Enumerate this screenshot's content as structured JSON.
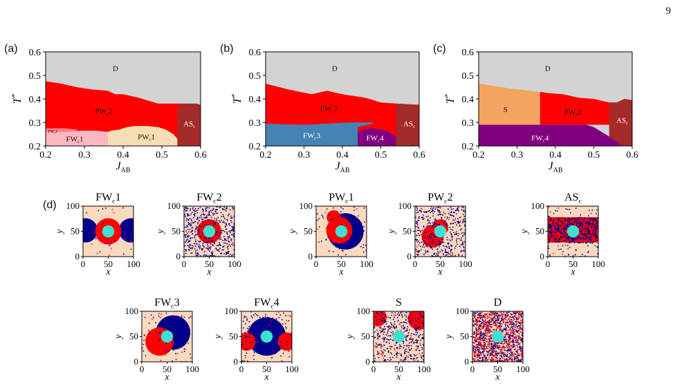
{
  "page_number": "9",
  "panel_labels": {
    "a": "(a)",
    "b": "(b)",
    "c": "(c)",
    "d": "(d)"
  },
  "colors": {
    "D": "#d3d3d3",
    "PWc2": "#ff0000",
    "FWc1": "#ffb6c1",
    "FWc2": "#f08080",
    "PWc1": "#f5deb3",
    "ASc": "#a52a2a",
    "FWc3": "#4682b4",
    "FWc4": "#800080",
    "S": "#f4a460",
    "snap_bg": "#fbd9bf",
    "snap_blue": "#00008b",
    "snap_red": "#ff0000",
    "snap_disk": "#40e0d0"
  },
  "chart_data": [
    {
      "type": "area",
      "panel": "(a)",
      "xlabel": "J",
      "xlabel_sub": "AB",
      "ylabel": "T",
      "ylabel_sup": "*",
      "xlim": [
        0.2,
        0.6
      ],
      "ylim": [
        0.2,
        0.6
      ],
      "xticks": [
        "0.2",
        "0.3",
        "0.4",
        "0.5",
        "0.6"
      ],
      "yticks": [
        "0.2",
        "0.3",
        "0.4",
        "0.5",
        "0.6"
      ],
      "regions": [
        {
          "name": "D",
          "label": "D",
          "color": "D",
          "label_at": [
            0.38,
            0.53
          ],
          "label_size": 11,
          "poly": [
            [
              0.2,
              0.2
            ],
            [
              0.6,
              0.2
            ],
            [
              0.6,
              0.6
            ],
            [
              0.2,
              0.6
            ]
          ]
        },
        {
          "name": "PWc2",
          "label": "PW",
          "label_sub": "c",
          "label_tail": "2",
          "color": "PWc2",
          "label_at": [
            0.35,
            0.35
          ],
          "label_size": 11,
          "poly": [
            [
              0.2,
              0.2
            ],
            [
              0.6,
              0.2
            ],
            [
              0.6,
              0.375
            ],
            [
              0.58,
              0.375
            ],
            [
              0.55,
              0.38
            ],
            [
              0.49,
              0.38
            ],
            [
              0.44,
              0.405
            ],
            [
              0.4,
              0.42
            ],
            [
              0.38,
              0.42
            ],
            [
              0.36,
              0.435
            ],
            [
              0.32,
              0.44
            ],
            [
              0.28,
              0.45
            ],
            [
              0.24,
              0.465
            ],
            [
              0.2,
              0.475
            ]
          ]
        },
        {
          "name": "FWc2",
          "label": "FW",
          "label_sub": "c",
          "label_tail": "2",
          "color": "FWc2",
          "label_at": [
            0.218,
            0.262
          ],
          "label_size": 6,
          "poly": [
            [
              0.2,
              0.2
            ],
            [
              0.28,
              0.2
            ],
            [
              0.28,
              0.27
            ],
            [
              0.25,
              0.275
            ],
            [
              0.2,
              0.275
            ]
          ]
        },
        {
          "name": "FWc1",
          "label": "FW",
          "label_sub": "c",
          "label_tail": "1",
          "color": "FWc1",
          "label_at": [
            0.275,
            0.23
          ],
          "label_size": 11,
          "poly": [
            [
              0.2,
              0.2
            ],
            [
              0.36,
              0.2
            ],
            [
              0.36,
              0.26
            ],
            [
              0.33,
              0.265
            ],
            [
              0.29,
              0.265
            ],
            [
              0.25,
              0.26
            ],
            [
              0.2,
              0.26
            ]
          ]
        },
        {
          "name": "PWc1",
          "label": "PW",
          "label_sub": "c",
          "label_tail": "1",
          "color": "PWc1",
          "label_at": [
            0.46,
            0.24
          ],
          "label_size": 11,
          "poly": [
            [
              0.36,
              0.2
            ],
            [
              0.56,
              0.2
            ],
            [
              0.55,
              0.21
            ],
            [
              0.54,
              0.23
            ],
            [
              0.53,
              0.25
            ],
            [
              0.52,
              0.26
            ],
            [
              0.51,
              0.27
            ],
            [
              0.49,
              0.28
            ],
            [
              0.46,
              0.285
            ],
            [
              0.43,
              0.285
            ],
            [
              0.41,
              0.28
            ],
            [
              0.39,
              0.27
            ],
            [
              0.37,
              0.265
            ],
            [
              0.36,
              0.26
            ]
          ]
        },
        {
          "name": "ASc",
          "label": "AS",
          "label_sub": "c",
          "label_tail": "",
          "color": "ASc",
          "label_at": [
            0.571,
            0.295
          ],
          "label_size": 11,
          "poly": [
            [
              0.54,
              0.2
            ],
            [
              0.6,
              0.2
            ],
            [
              0.6,
              0.375
            ],
            [
              0.59,
              0.38
            ],
            [
              0.55,
              0.38
            ],
            [
              0.54,
              0.36
            ],
            [
              0.54,
              0.3
            ]
          ]
        }
      ]
    },
    {
      "type": "area",
      "panel": "(b)",
      "xlabel": "J",
      "xlabel_sub": "AB",
      "ylabel": "T",
      "ylabel_sup": "*",
      "xlim": [
        0.2,
        0.6
      ],
      "ylim": [
        0.2,
        0.6
      ],
      "xticks": [
        "0.2",
        "0.3",
        "0.4",
        "0.5",
        "0.6"
      ],
      "yticks": [
        "0.2",
        "0.3",
        "0.4",
        "0.5",
        "0.6"
      ],
      "regions": [
        {
          "name": "D",
          "label": "D",
          "color": "D",
          "label_at": [
            0.38,
            0.53
          ],
          "label_size": 11,
          "poly": [
            [
              0.2,
              0.2
            ],
            [
              0.6,
              0.2
            ],
            [
              0.6,
              0.6
            ],
            [
              0.2,
              0.6
            ]
          ]
        },
        {
          "name": "PWc2",
          "label": "PW",
          "label_sub": "c",
          "label_tail": "2",
          "color": "PWc2",
          "label_at": [
            0.365,
            0.36
          ],
          "label_size": 11,
          "poly": [
            [
              0.2,
              0.2
            ],
            [
              0.6,
              0.2
            ],
            [
              0.6,
              0.375
            ],
            [
              0.54,
              0.38
            ],
            [
              0.5,
              0.385
            ],
            [
              0.46,
              0.405
            ],
            [
              0.4,
              0.42
            ],
            [
              0.36,
              0.435
            ],
            [
              0.32,
              0.42
            ],
            [
              0.26,
              0.44
            ],
            [
              0.2,
              0.465
            ]
          ]
        },
        {
          "name": "FWc3",
          "label": "FW",
          "label_sub": "c",
          "label_tail": "3",
          "color": "FWc3",
          "label_at": [
            0.32,
            0.245
          ],
          "label_size": 11,
          "poly": [
            [
              0.2,
              0.2
            ],
            [
              0.44,
              0.2
            ],
            [
              0.44,
              0.28
            ],
            [
              0.48,
              0.295
            ],
            [
              0.48,
              0.3
            ],
            [
              0.42,
              0.3
            ],
            [
              0.3,
              0.29
            ],
            [
              0.2,
              0.295
            ]
          ]
        },
        {
          "name": "FWc4",
          "label": "FW",
          "label_sub": "c",
          "label_tail": "4",
          "color": "FWc4",
          "label_at": [
            0.485,
            0.235
          ],
          "label_size": 11,
          "poly": [
            [
              0.44,
              0.2
            ],
            [
              0.575,
              0.2
            ],
            [
              0.57,
              0.21
            ],
            [
              0.55,
              0.23
            ],
            [
              0.53,
              0.25
            ],
            [
              0.52,
              0.26
            ],
            [
              0.5,
              0.27
            ],
            [
              0.48,
              0.275
            ],
            [
              0.455,
              0.27
            ],
            [
              0.44,
              0.26
            ]
          ]
        },
        {
          "name": "ASc",
          "label": "AS",
          "label_sub": "c",
          "label_tail": "",
          "color": "ASc",
          "label_at": [
            0.574,
            0.295
          ],
          "label_size": 11,
          "poly": [
            [
              0.54,
              0.2
            ],
            [
              0.6,
              0.2
            ],
            [
              0.6,
              0.375
            ],
            [
              0.54,
              0.38
            ],
            [
              0.54,
              0.3
            ]
          ]
        },
        {
          "name": "ASc-lower",
          "label": "",
          "color": "ASc",
          "label_at": [
            0.6,
            0.2
          ],
          "label_size": 0,
          "poly": [
            [
              0.575,
              0.2
            ],
            [
              0.6,
              0.2
            ],
            [
              0.6,
              0.22
            ],
            [
              0.59,
              0.215
            ]
          ]
        }
      ]
    },
    {
      "type": "area",
      "panel": "(c)",
      "xlabel": "J",
      "xlabel_sub": "AB",
      "ylabel": "T",
      "ylabel_sup": "*",
      "xlim": [
        0.2,
        0.6
      ],
      "ylim": [
        0.2,
        0.6
      ],
      "xticks": [
        "0.2",
        "0.3",
        "0.4",
        "0.5",
        "0.6"
      ],
      "yticks": [
        "0.2",
        "0.3",
        "0.4",
        "0.5",
        "0.6"
      ],
      "regions": [
        {
          "name": "D",
          "label": "D",
          "color": "D",
          "label_at": [
            0.38,
            0.53
          ],
          "label_size": 11,
          "poly": [
            [
              0.2,
              0.2
            ],
            [
              0.6,
              0.2
            ],
            [
              0.6,
              0.6
            ],
            [
              0.2,
              0.6
            ]
          ]
        },
        {
          "name": "PWc2",
          "label": "PW",
          "label_sub": "c",
          "label_tail": "2",
          "color": "PWc2",
          "label_at": [
            0.445,
            0.345
          ],
          "label_size": 11,
          "poly": [
            [
              0.36,
              0.29
            ],
            [
              0.6,
              0.29
            ],
            [
              0.6,
              0.395
            ],
            [
              0.58,
              0.4
            ],
            [
              0.56,
              0.385
            ],
            [
              0.54,
              0.385
            ],
            [
              0.5,
              0.4
            ],
            [
              0.46,
              0.405
            ],
            [
              0.42,
              0.42
            ],
            [
              0.38,
              0.425
            ],
            [
              0.36,
              0.43
            ]
          ]
        },
        {
          "name": "S",
          "label": "S",
          "color": "S",
          "label_at": [
            0.27,
            0.355
          ],
          "label_size": 11,
          "poly": [
            [
              0.2,
              0.29
            ],
            [
              0.36,
              0.29
            ],
            [
              0.36,
              0.43
            ],
            [
              0.28,
              0.445
            ],
            [
              0.2,
              0.465
            ]
          ]
        },
        {
          "name": "FWc4",
          "label": "FW",
          "label_sub": "c",
          "label_tail": "4",
          "color": "FWc4",
          "label_at": [
            0.36,
            0.235
          ],
          "label_size": 11,
          "poly": [
            [
              0.2,
              0.2
            ],
            [
              0.575,
              0.2
            ],
            [
              0.56,
              0.22
            ],
            [
              0.54,
              0.24
            ],
            [
              0.52,
              0.26
            ],
            [
              0.5,
              0.28
            ],
            [
              0.48,
              0.29
            ],
            [
              0.2,
              0.29
            ]
          ]
        },
        {
          "name": "ASc",
          "label": "AS",
          "label_sub": "c",
          "label_tail": "",
          "color": "ASc",
          "label_at": [
            0.574,
            0.31
          ],
          "label_size": 11,
          "poly": [
            [
              0.54,
              0.29
            ],
            [
              0.6,
              0.29
            ],
            [
              0.6,
              0.395
            ],
            [
              0.58,
              0.4
            ],
            [
              0.56,
              0.385
            ],
            [
              0.54,
              0.385
            ]
          ]
        },
        {
          "name": "ASc-lower",
          "label": "",
          "color": "ASc",
          "label_at": [
            0.6,
            0.2
          ],
          "label_size": 0,
          "poly": [
            [
              0.56,
              0.22
            ],
            [
              0.575,
              0.2
            ],
            [
              0.6,
              0.2
            ],
            [
              0.6,
              0.29
            ],
            [
              0.54,
              0.29
            ],
            [
              0.54,
              0.24
            ]
          ]
        }
      ]
    }
  ],
  "snapshots": {
    "xlabel": "x",
    "ylabel": "y",
    "ticks": [
      "0",
      "50",
      "100"
    ],
    "range": [
      0,
      100
    ],
    "disk_radius": 12,
    "items": [
      {
        "id": "FWc1",
        "title": "FW",
        "title_sub": "c",
        "title_tail": "1",
        "noise": 0.02,
        "noise_red": 0.01,
        "blobs": [
          {
            "c": [
              50,
              50
            ],
            "r": 26,
            "color": "red"
          },
          {
            "c": [
              5,
              52
            ],
            "r": 24,
            "color": "blue"
          },
          {
            "c": [
              95,
              52
            ],
            "r": 24,
            "color": "blue"
          }
        ]
      },
      {
        "id": "FWc2",
        "title": "FW",
        "title_sub": "c",
        "title_tail": "2",
        "noise": 0.35,
        "noise_red": 0.02,
        "blobs": [
          {
            "c": [
              50,
              50
            ],
            "r": 24,
            "color": "red"
          }
        ]
      },
      {
        "id": "PWc1",
        "title": "PW",
        "title_sub": "c",
        "title_tail": "1",
        "noise": 0.04,
        "noise_red": 0.01,
        "blobs": [
          {
            "c": [
              58,
              50
            ],
            "r": 36,
            "color": "blue"
          },
          {
            "c": [
              46,
              52
            ],
            "r": 26,
            "color": "red"
          },
          {
            "c": [
              35,
              78
            ],
            "r": 14,
            "color": "red"
          }
        ]
      },
      {
        "id": "PWc2",
        "title": "PW",
        "title_sub": "c",
        "title_tail": "2",
        "noise": 0.28,
        "noise_red": 0.04,
        "blobs": [
          {
            "c": [
              35,
              40
            ],
            "r": 22,
            "color": "red"
          },
          {
            "c": [
              50,
              58
            ],
            "r": 16,
            "color": "red"
          }
        ]
      },
      {
        "id": "ASc",
        "title": "AS",
        "title_sub": "c",
        "title_tail": "",
        "noise": 0.05,
        "noise_red": 0.02,
        "mixed_band": {
          "y0": 28,
          "y1": 78,
          "x0": 0,
          "x1": 100
        }
      },
      {
        "id": "FWc3",
        "title": "FW",
        "title_sub": "c",
        "title_tail": "3",
        "noise": 0.03,
        "noise_red": 0.01,
        "blobs": [
          {
            "c": [
              62,
              58
            ],
            "r": 34,
            "color": "blue"
          },
          {
            "c": [
              35,
              40
            ],
            "r": 28,
            "color": "red"
          }
        ]
      },
      {
        "id": "FWc4",
        "title": "FW",
        "title_sub": "c",
        "title_tail": "4",
        "noise": 0.1,
        "noise_red": 0.02,
        "blobs": [
          {
            "c": [
              50,
              50
            ],
            "r": 38,
            "color": "blue"
          },
          {
            "c": [
              10,
              40
            ],
            "r": 18,
            "color": "red"
          },
          {
            "c": [
              90,
              40
            ],
            "r": 18,
            "color": "red"
          }
        ]
      },
      {
        "id": "S",
        "title": "S",
        "title_sub": "",
        "title_tail": "",
        "noise": 0.28,
        "noise_red": 0.08,
        "blobs": [
          {
            "c": [
              8,
              88
            ],
            "r": 18,
            "color": "red"
          },
          {
            "c": [
              90,
              85
            ],
            "r": 22,
            "color": "red"
          }
        ]
      },
      {
        "id": "D",
        "title": "D",
        "title_sub": "",
        "title_tail": "",
        "noise": 0.5,
        "noise_red": 0.5,
        "blobs": []
      }
    ]
  }
}
